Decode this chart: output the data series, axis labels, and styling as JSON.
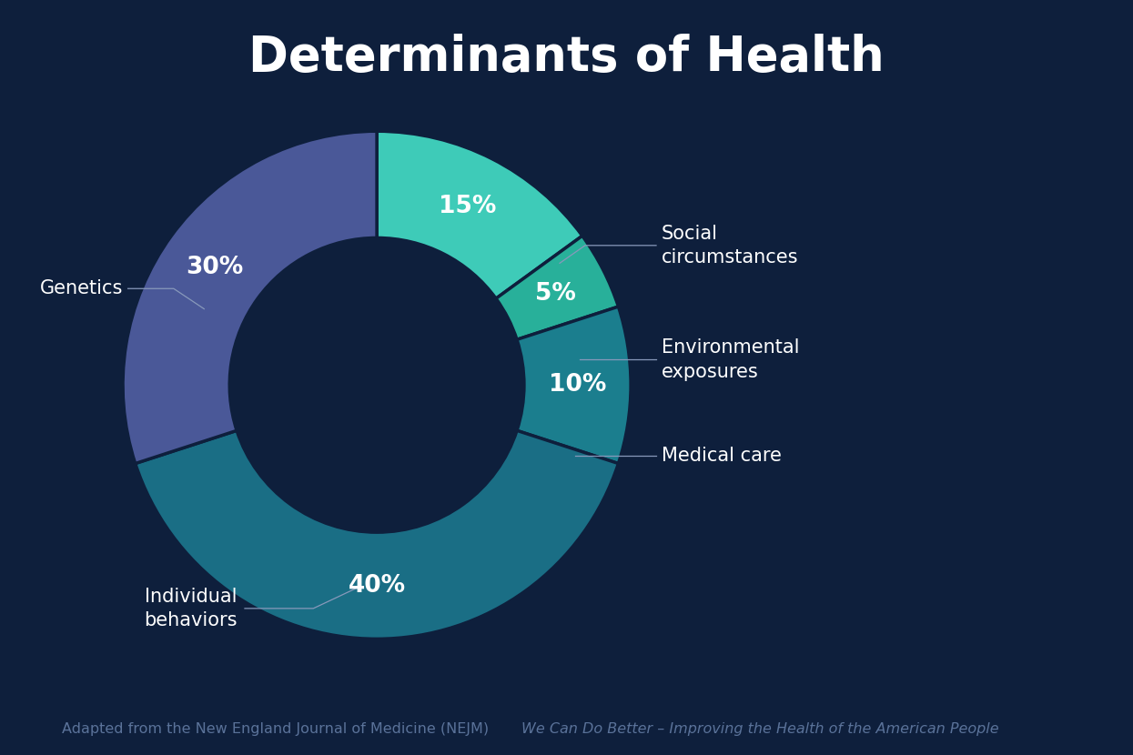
{
  "title": "Determinants of Health",
  "background_color": "#0e1f3c",
  "title_color": "#ffffff",
  "title_fontsize": 38,
  "footnote_normal": "Adapted from the New England Journal of Medicine (NEJM) ",
  "footnote_italic": "We Can Do Better – Improving the Health of the American People",
  "footnote_color": "#5a7299",
  "footnote_fontsize": 11.5,
  "slices": [
    {
      "label": "Social\ncircumstances",
      "pct": 15,
      "color": "#3ecbb8",
      "pct_label": "15%"
    },
    {
      "label": "Environmental\nexposures",
      "pct": 5,
      "color": "#28b09a",
      "pct_label": "5%"
    },
    {
      "label": "Medical care",
      "pct": 10,
      "color": "#1b7e8e",
      "pct_label": "10%"
    },
    {
      "label": "Individual\nbehaviors",
      "pct": 40,
      "color": "#1a6e85",
      "pct_label": "40%"
    },
    {
      "label": "Genetics",
      "pct": 30,
      "color": "#4a5898",
      "pct_label": "30%"
    }
  ],
  "start_angle": 90,
  "text_color": "#ffffff",
  "label_fontsize": 15,
  "pct_fontsize": 19,
  "line_color": "#8899bb"
}
